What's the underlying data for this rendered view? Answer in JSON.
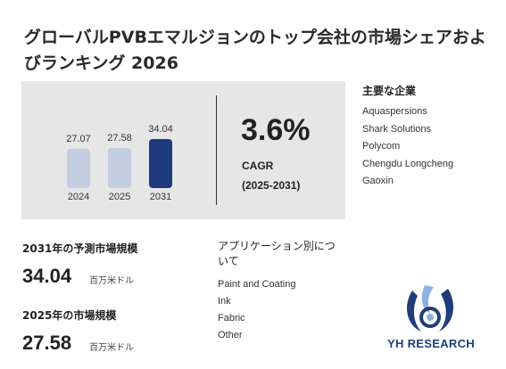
{
  "title": "グローバルPVBエマルジョンのトップ会社の市場シェアおよびランキング 2026",
  "chart_data": {
    "type": "bar",
    "categories": [
      "2024",
      "2025",
      "2031"
    ],
    "values": [
      27.07,
      27.58,
      34.04
    ],
    "value_labels": [
      "27.07",
      "27.58",
      "34.04"
    ],
    "colors": [
      "#c5cde0",
      "#c5cde0",
      "#1f3b80"
    ]
  },
  "cagr": {
    "value": "3.6%",
    "label": "CAGR",
    "period": "(2025-2031)"
  },
  "key_players": {
    "title": "主要な企業",
    "companies": [
      "Aquaspersions",
      "Shark Solutions",
      "Polycom",
      "Chengdu Longcheng",
      "Gaoxin"
    ]
  },
  "stats": {
    "forecast_label": "2031年の予測市場規模",
    "forecast_value": "34.04",
    "forecast_unit": "百万米ドル",
    "current_label": "2025年の市場規模",
    "current_value": "27.58",
    "current_unit": "百万米ドル"
  },
  "applications": {
    "title": "アプリケーション別について",
    "items": [
      "Paint and Coating",
      "Ink",
      "Fabric",
      "Other"
    ]
  },
  "logo": {
    "text": "YH RESEARCH",
    "color": "#1f3d7a",
    "accent": "#8fb0e0"
  }
}
